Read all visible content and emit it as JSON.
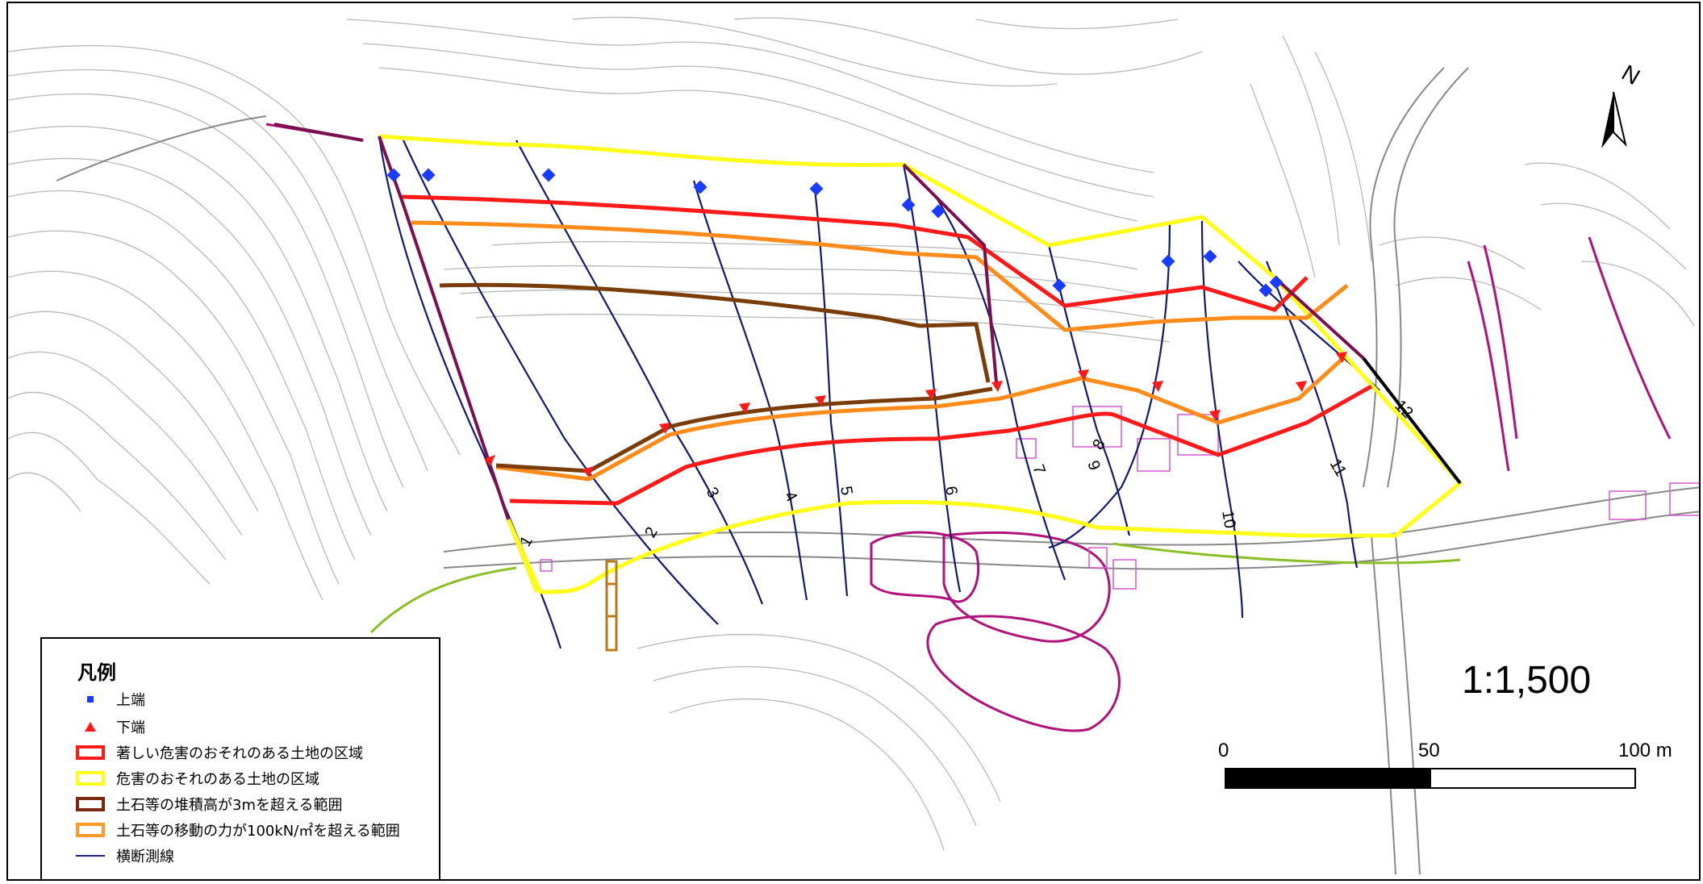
{
  "legend": {
    "title": "凡例",
    "items": [
      {
        "label": "上端",
        "symbol": "square",
        "color": "#0033ff"
      },
      {
        "label": "下端",
        "symbol": "triangle",
        "color": "#ff0000"
      },
      {
        "label": "著しい危害のおそれのある土地の区域",
        "symbol": "box",
        "color": "#ff0000"
      },
      {
        "label": "危害のおそれのある土地の区域",
        "symbol": "box",
        "color": "#ffff00"
      },
      {
        "label": "土石等の堆積高が3mを超える範囲",
        "symbol": "box",
        "color": "#7a2a10"
      },
      {
        "label": "土石等の移動の力が100kN/㎡を超える範囲",
        "symbol": "box",
        "color": "#ff9a2a"
      },
      {
        "label": "横断測線",
        "symbol": "line",
        "color": "#1a237e"
      }
    ]
  },
  "scale": {
    "ratio": "1:1,500",
    "labels": [
      "0",
      "50",
      "100 m"
    ]
  },
  "north_label": "N",
  "section_lines": [
    "1",
    "2",
    "3",
    "4",
    "5",
    "6",
    "7",
    "8",
    "9",
    "10",
    "11",
    "12"
  ],
  "colors": {
    "red_zone": "#ff1a1a",
    "yellow_zone": "#ffff1a",
    "orange_zone": "#ff8c1a",
    "brown_zone": "#7a3d0a",
    "section_line": "#101a6e",
    "upper_marker": "#1a3cff",
    "lower_marker": "#ff1a1a"
  }
}
